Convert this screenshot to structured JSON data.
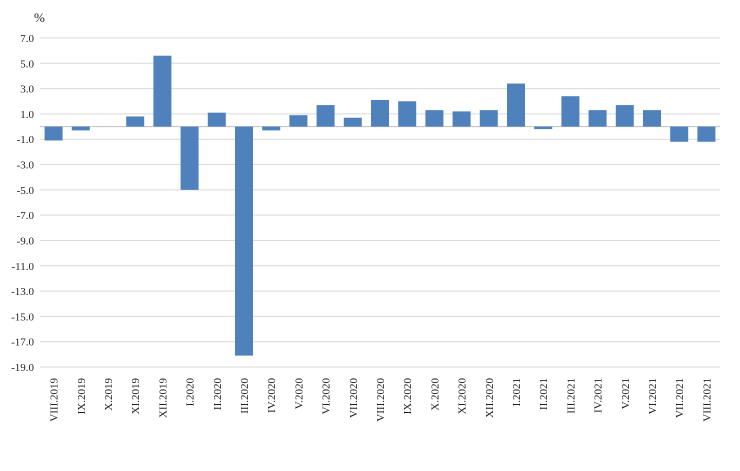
{
  "chart_data": {
    "type": "bar",
    "title": "",
    "xlabel": "",
    "ylabel": "%",
    "ylim": [
      -19,
      7
    ],
    "yticks": [
      7.0,
      5.0,
      3.0,
      1.0,
      -1.0,
      -3.0,
      -5.0,
      -7.0,
      -9.0,
      -11.0,
      -13.0,
      -15.0,
      -17.0,
      -19.0
    ],
    "ytick_labels": [
      "7.0",
      "5.0",
      "3.0",
      "1.0",
      "-1.0",
      "-3.0",
      "-5.0",
      "-7.0",
      "-9.0",
      "-11.0",
      "-13.0",
      "-15.0",
      "-17.0",
      "-19.0"
    ],
    "grid": true,
    "legend": "none",
    "bar_color": "#4f81bd",
    "categories": [
      "VIII.2019",
      "IX.2019",
      "X.2019",
      "XI.2019",
      "XII.2019",
      "I.2020",
      "II.2020",
      "III.2020",
      "IV.2020",
      "V.2020",
      "VI.2020",
      "VII.2020",
      "VIII.2020",
      "IX.2020",
      "X.2020",
      "XI.2020",
      "XII.2020",
      "I.2021",
      "II.2021",
      "III.2021",
      "IV.2021",
      "V.2021",
      "VI.2021",
      "VII.2021",
      "VIII.2021"
    ],
    "values": [
      -1.1,
      -0.3,
      0.0,
      0.8,
      5.6,
      -5.0,
      1.1,
      -18.1,
      -0.3,
      0.9,
      1.7,
      0.7,
      2.1,
      2.0,
      1.3,
      1.2,
      1.3,
      3.4,
      -0.2,
      2.4,
      1.3,
      1.7,
      1.3,
      -1.2,
      -1.2
    ]
  }
}
